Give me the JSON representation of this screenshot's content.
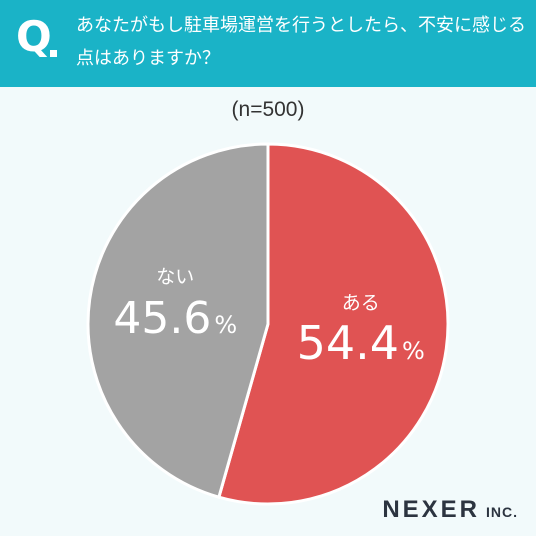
{
  "header": {
    "q_mark": "Q",
    "question": "あなたがもし駐車場運営を行うとしたら、不安に感じる点はありますか？"
  },
  "sample_label": "(n=500)",
  "colors": {
    "header_bg": "#1ab3c7",
    "background": "#f2fafb",
    "aru": "#e05353",
    "nai": "#a3a3a3"
  },
  "logo": {
    "main": "NEXER",
    "suffix": "INC."
  },
  "chart_data": {
    "type": "pie",
    "slices": [
      {
        "name": "ある",
        "value": 54.4,
        "color": "#e05353"
      },
      {
        "name": "ない",
        "value": 45.6,
        "color": "#a3a3a3"
      }
    ]
  }
}
